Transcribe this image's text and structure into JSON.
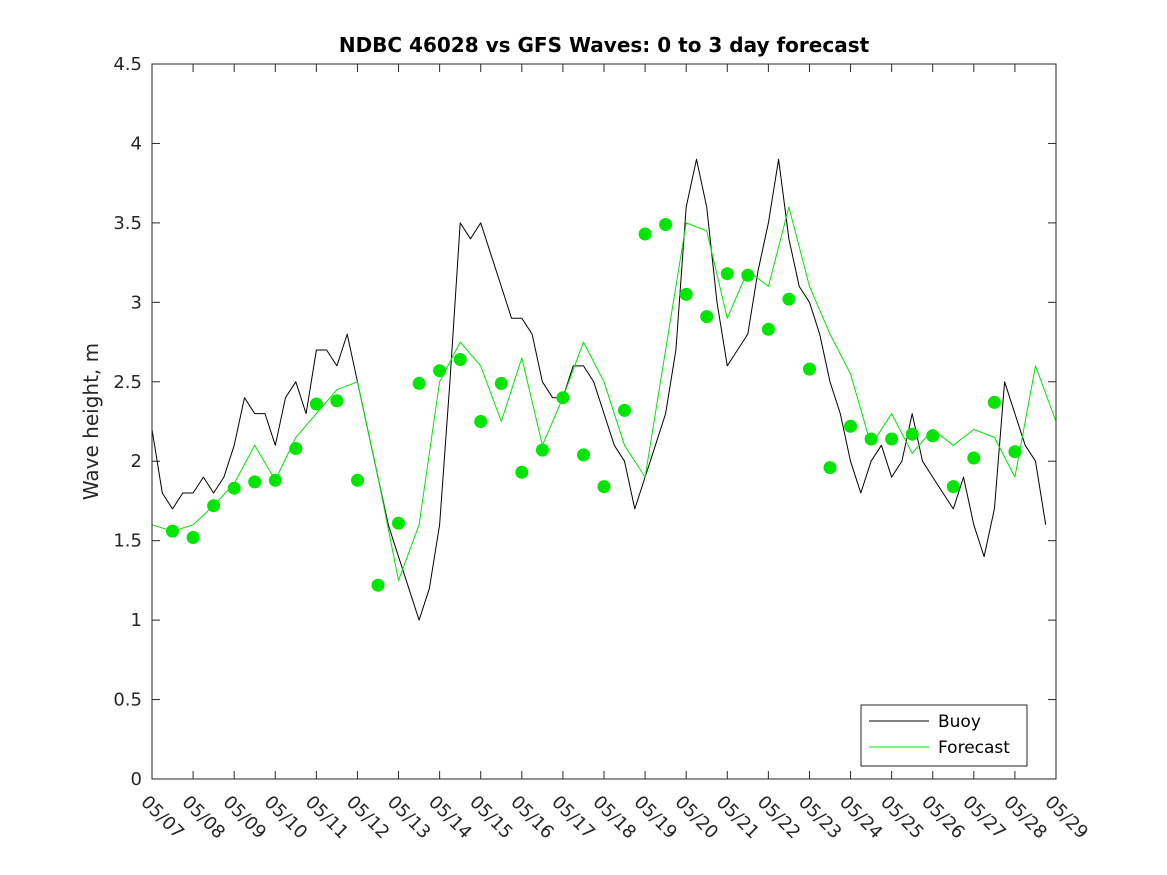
{
  "chart_data": {
    "type": "line",
    "title": "NDBC 46028 vs GFS Waves: 0 to 3 day forecast",
    "xlabel": "",
    "ylabel": "Wave height, m",
    "ylim": [
      0,
      4.5
    ],
    "xlim": [
      0,
      22
    ],
    "yticks": [
      0,
      0.5,
      1,
      1.5,
      2,
      2.5,
      3,
      3.5,
      4,
      4.5
    ],
    "xtick_labels": [
      "05/07",
      "05/08",
      "05/09",
      "05/10",
      "05/11",
      "05/12",
      "05/13",
      "05/14",
      "05/15",
      "05/16",
      "05/17",
      "05/18",
      "05/19",
      "05/20",
      "05/21",
      "05/22",
      "05/23",
      "05/24",
      "05/25",
      "05/26",
      "05/27",
      "05/28",
      "05/29"
    ],
    "x_unit": "days since 05/07",
    "grid": false,
    "legend_position": "bottom-right",
    "legend": [
      {
        "label": "Buoy",
        "color": "#000000"
      },
      {
        "label": "Forecast",
        "color": "#00e600"
      }
    ],
    "series": [
      {
        "name": "Buoy",
        "color": "#000000",
        "x": [
          0.0,
          0.25,
          0.5,
          0.75,
          1.0,
          1.25,
          1.5,
          1.75,
          2.0,
          2.25,
          2.5,
          2.75,
          3.0,
          3.25,
          3.5,
          3.75,
          4.0,
          4.25,
          4.5,
          4.75,
          5.0,
          5.25,
          5.5,
          5.75,
          6.0,
          6.25,
          6.5,
          6.75,
          7.0,
          7.25,
          7.5,
          7.75,
          8.0,
          8.25,
          8.5,
          8.75,
          9.0,
          9.25,
          9.5,
          9.75,
          10.0,
          10.25,
          10.5,
          10.75,
          11.0,
          11.25,
          11.5,
          11.75,
          12.0,
          12.25,
          12.5,
          12.75,
          13.0,
          13.25,
          13.5,
          13.75,
          14.0,
          14.25,
          14.5,
          14.75,
          15.0,
          15.25,
          15.5,
          15.75,
          16.0,
          16.25,
          16.5,
          16.75,
          17.0,
          17.25,
          17.5,
          17.75,
          18.0,
          18.25,
          18.5,
          18.75,
          19.0,
          19.25,
          19.5,
          19.75,
          20.0,
          20.25,
          20.5,
          20.75,
          21.0,
          21.25,
          21.5,
          21.75
        ],
        "y": [
          2.2,
          1.8,
          1.7,
          1.8,
          1.8,
          1.9,
          1.8,
          1.9,
          2.1,
          2.4,
          2.3,
          2.3,
          2.1,
          2.4,
          2.5,
          2.3,
          2.7,
          2.7,
          2.6,
          2.8,
          2.5,
          2.2,
          1.9,
          1.6,
          1.4,
          1.2,
          1.0,
          1.2,
          1.6,
          2.5,
          3.5,
          3.4,
          3.5,
          3.3,
          3.1,
          2.9,
          2.9,
          2.8,
          2.5,
          2.4,
          2.4,
          2.6,
          2.6,
          2.5,
          2.3,
          2.1,
          2.0,
          1.7,
          1.9,
          2.1,
          2.3,
          2.7,
          3.6,
          3.9,
          3.6,
          3.0,
          2.6,
          2.7,
          2.8,
          3.2,
          3.5,
          3.9,
          3.4,
          3.1,
          3.0,
          2.8,
          2.5,
          2.3,
          2.0,
          1.8,
          2.0,
          2.1,
          1.9,
          2.0,
          2.3,
          2.0,
          1.9,
          1.8,
          1.7,
          1.9,
          1.6,
          1.4,
          1.7,
          2.5,
          2.3,
          2.1,
          2.0,
          1.6
        ]
      },
      {
        "name": "Forecast",
        "color": "#00e600",
        "x": [
          0.0,
          0.5,
          1.0,
          1.5,
          2.0,
          2.5,
          3.0,
          3.5,
          4.0,
          4.5,
          5.0,
          5.5,
          6.0,
          6.5,
          7.0,
          7.5,
          8.0,
          8.5,
          9.0,
          9.5,
          10.0,
          10.5,
          11.0,
          11.5,
          12.0,
          12.5,
          13.0,
          13.5,
          14.0,
          14.5,
          15.0,
          15.5,
          16.0,
          16.5,
          17.0,
          17.5,
          18.0,
          18.5,
          19.0,
          19.5,
          20.0,
          20.5,
          21.0,
          21.5,
          22.0
        ],
        "y": [
          1.6,
          1.56,
          1.6,
          1.72,
          1.86,
          2.1,
          1.88,
          2.15,
          2.3,
          2.45,
          2.5,
          1.9,
          1.25,
          1.6,
          2.5,
          2.75,
          2.6,
          2.25,
          2.65,
          2.1,
          2.4,
          2.75,
          2.5,
          2.1,
          1.9,
          2.7,
          3.5,
          3.45,
          2.9,
          3.2,
          3.1,
          3.6,
          3.1,
          2.8,
          2.55,
          2.1,
          2.3,
          2.05,
          2.2,
          2.1,
          2.2,
          2.15,
          1.9,
          2.6,
          2.25
        ]
      }
    ],
    "forecast_markers": {
      "color": "#00e600",
      "x": [
        0.5,
        1.0,
        1.5,
        2.0,
        2.5,
        3.0,
        3.5,
        4.0,
        4.5,
        5.0,
        5.5,
        6.0,
        6.5,
        7.0,
        7.5,
        8.0,
        8.5,
        9.0,
        9.5,
        10.0,
        10.5,
        11.0,
        11.5,
        12.0,
        12.5,
        13.0,
        13.5,
        14.0,
        14.5,
        15.0,
        15.5,
        16.0,
        16.5,
        17.0,
        17.5,
        18.0,
        18.5,
        19.0,
        19.5,
        20.0,
        20.5,
        21.0
      ],
      "y": [
        1.56,
        1.52,
        1.72,
        1.83,
        1.87,
        1.88,
        2.08,
        2.36,
        2.38,
        1.88,
        1.22,
        1.61,
        2.49,
        2.57,
        2.64,
        2.25,
        2.49,
        1.93,
        2.07,
        2.4,
        2.04,
        1.84,
        2.32,
        3.43,
        3.49,
        3.05,
        2.91,
        3.18,
        3.17,
        2.83,
        3.02,
        2.58,
        1.96,
        2.22,
        2.14,
        2.14,
        2.17,
        2.16,
        1.84,
        2.02,
        2.37,
        2.06
      ]
    }
  }
}
